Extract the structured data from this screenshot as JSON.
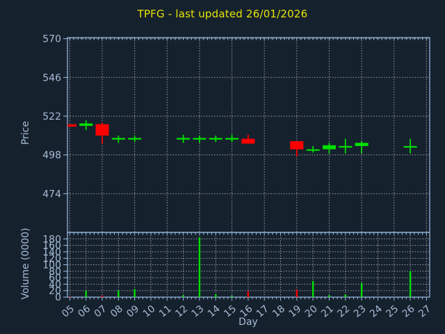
{
  "title": "TPFG - last updated 26/01/2026",
  "colors": {
    "background": "#16212e",
    "axis": "#9cc0e4",
    "tick_label": "#a6bcd4",
    "grid": "#b2b8bf",
    "title": "#e4e405",
    "up": "#00e000",
    "down": "#ff0000"
  },
  "chart_data": {
    "type": "candlestick",
    "title": "TPFG - last updated 26/01/2026",
    "xlabel": "Day",
    "legend": "none",
    "grid": "on",
    "panels": [
      {
        "name": "price",
        "ylabel": "Price",
        "yticks": [
          570,
          546,
          522,
          498,
          474
        ],
        "yrange": [
          450,
          570.7
        ],
        "x_grid_every": 2
      },
      {
        "name": "volume",
        "ylabel": "Volume (0000)",
        "yticks": [
          0,
          20,
          40,
          60,
          80,
          100,
          120,
          140,
          160,
          180
        ],
        "yrange": [
          0,
          200
        ],
        "x_grid_every": 1
      }
    ],
    "days": [
      "05",
      "06",
      "07",
      "08",
      "09",
      "10",
      "11",
      "12",
      "13",
      "14",
      "15",
      "16",
      "17",
      "18",
      "19",
      "20",
      "21",
      "22",
      "23",
      "24",
      "25",
      "26",
      "27"
    ],
    "series": [
      {
        "day": "05",
        "open": 517,
        "high": 517,
        "low": 515.5,
        "close": 515.5,
        "direction": "down",
        "volume": 2
      },
      {
        "day": "06",
        "open": 516,
        "high": 519.5,
        "low": 513.5,
        "close": 517.5,
        "direction": "up",
        "volume": 20
      },
      {
        "day": "07",
        "open": 517,
        "high": 518,
        "low": 505,
        "close": 510,
        "direction": "down",
        "volume": 5
      },
      {
        "day": "08",
        "open": 507.5,
        "high": 510,
        "low": 505.5,
        "close": 508.5,
        "direction": "up",
        "volume": 20
      },
      {
        "day": "09",
        "open": 507.5,
        "high": 510,
        "low": 506,
        "close": 508.5,
        "direction": "up",
        "volume": 25
      },
      {
        "day": "12",
        "open": 507.5,
        "high": 510.5,
        "low": 505.5,
        "close": 508.5,
        "direction": "up",
        "volume": 6
      },
      {
        "day": "13",
        "open": 507.5,
        "high": 510,
        "low": 505.5,
        "close": 508.5,
        "direction": "up",
        "volume": 185
      },
      {
        "day": "14",
        "open": 507.5,
        "high": 510,
        "low": 506,
        "close": 508.5,
        "direction": "up",
        "volume": 9
      },
      {
        "day": "15",
        "open": 507.5,
        "high": 510.5,
        "low": 506,
        "close": 508.5,
        "direction": "up",
        "volume": 5
      },
      {
        "day": "16",
        "open": 508,
        "high": 510.5,
        "low": 505,
        "close": 505,
        "direction": "down",
        "volume": 18
      },
      {
        "day": "19",
        "open": 506.5,
        "high": 506.5,
        "low": 497,
        "close": 501.5,
        "direction": "down",
        "volume": 23
      },
      {
        "day": "20",
        "open": 501,
        "high": 503.5,
        "low": 499.5,
        "close": 501.5,
        "direction": "up",
        "volume": 50
      },
      {
        "day": "21",
        "open": 501.5,
        "high": 505.5,
        "low": 499,
        "close": 504,
        "direction": "up",
        "volume": 6
      },
      {
        "day": "22",
        "open": 503,
        "high": 508,
        "low": 499,
        "close": 503.5,
        "direction": "up",
        "volume": 8
      },
      {
        "day": "23",
        "open": 503.5,
        "high": 506.5,
        "low": 499,
        "close": 505.5,
        "direction": "up",
        "volume": 44
      },
      {
        "day": "26",
        "open": 503,
        "high": 508,
        "low": 499,
        "close": 503.5,
        "direction": "up",
        "volume": 81
      }
    ]
  }
}
